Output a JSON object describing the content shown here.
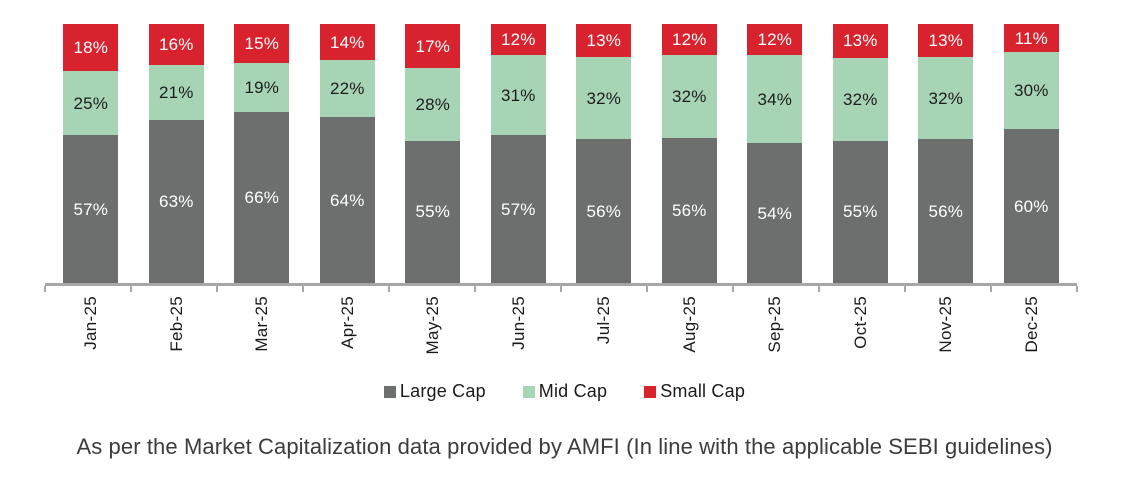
{
  "caption": "As per the Market Capitalization data provided by AMFI (In line with the applicable SEBI guidelines)",
  "chart_data": {
    "type": "bar",
    "stacked": true,
    "orientation": "vertical",
    "categories": [
      "Jan-25",
      "Feb-25",
      "Mar-25",
      "Apr-25",
      "May-25",
      "Jun-25",
      "Jul-25",
      "Aug-25",
      "Sep-25",
      "Oct-25",
      "Nov-25",
      "Dec-25"
    ],
    "series": [
      {
        "name": "Large Cap",
        "color": "#6D6E6E",
        "label_color": "#FFFFFF",
        "values": [
          57,
          63,
          66,
          64,
          55,
          57,
          56,
          56,
          54,
          55,
          56,
          60
        ]
      },
      {
        "name": "Mid Cap",
        "color": "#A7D4B5",
        "label_color": "#1D1D1D",
        "values": [
          25,
          21,
          19,
          22,
          28,
          31,
          32,
          32,
          34,
          32,
          32,
          30
        ]
      },
      {
        "name": "Small Cap",
        "color": "#D8232E",
        "label_color": "#FFFFFF",
        "values": [
          18,
          16,
          15,
          14,
          17,
          12,
          13,
          12,
          12,
          13,
          13,
          11
        ]
      }
    ],
    "value_suffix": "%",
    "ylim": [
      0,
      100
    ],
    "grid": false,
    "y_axis_visible": false,
    "legend_position": "bottom",
    "axis_color": "#A7A7A7"
  }
}
